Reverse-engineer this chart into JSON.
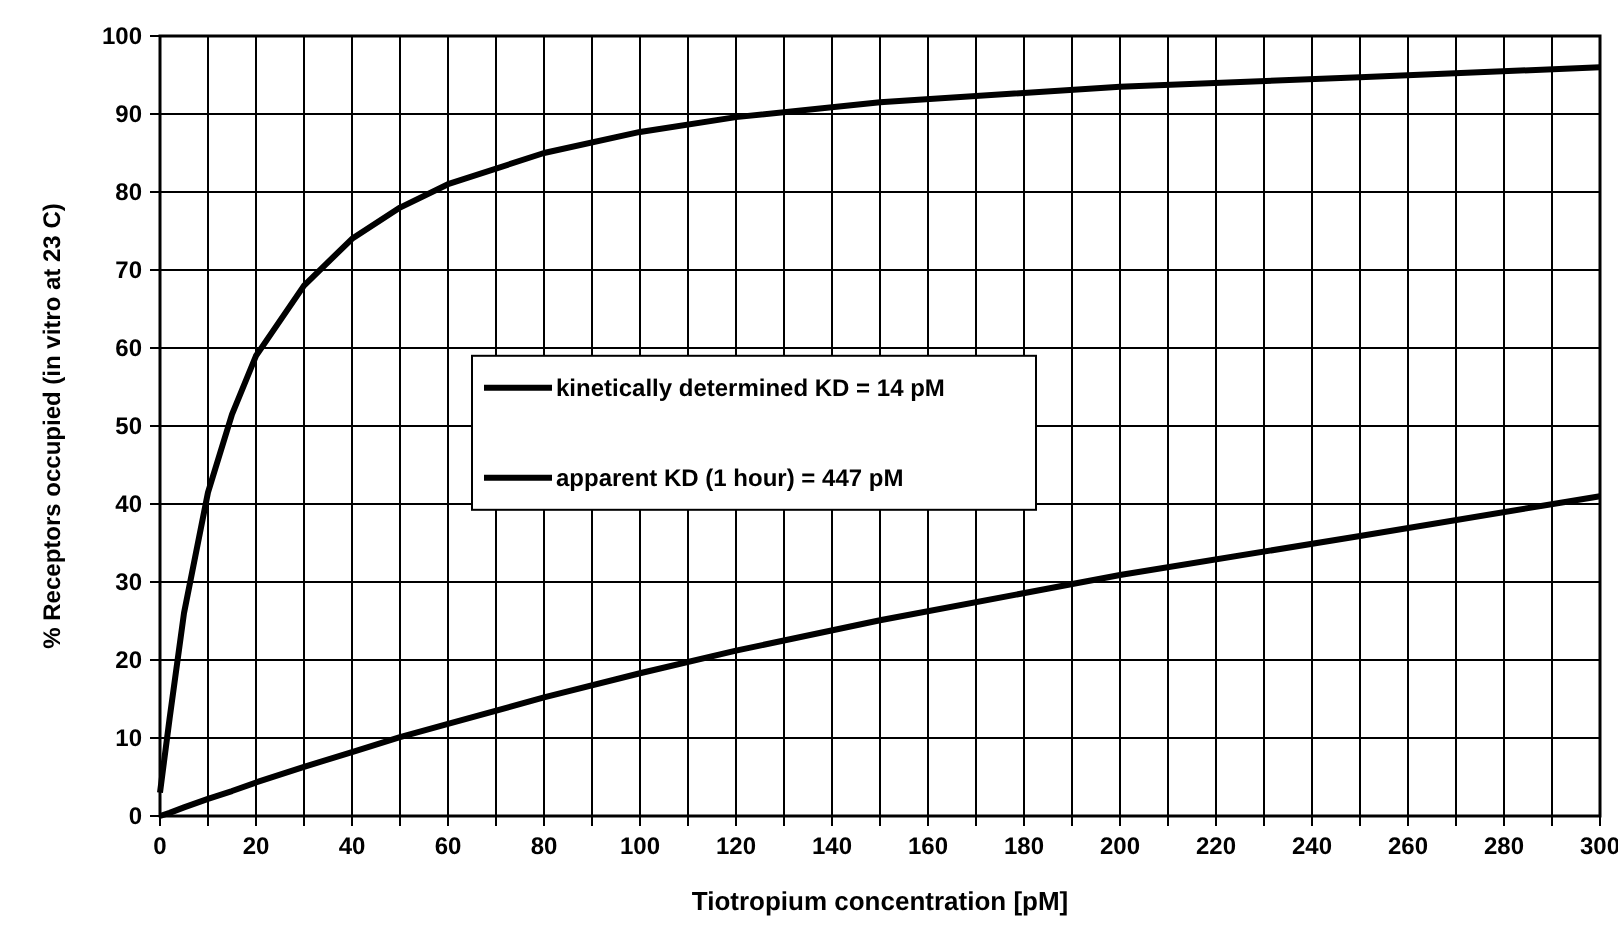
{
  "chart_data": {
    "type": "line",
    "xlabel": "Tiotropium concentration [pM]",
    "ylabel": "% Receptors occupied (in vitro at 23 C)",
    "x": [
      0,
      2,
      5,
      10,
      15,
      20,
      30,
      40,
      50,
      60,
      80,
      100,
      120,
      150,
      200,
      250,
      300
    ],
    "series": [
      {
        "name": "kinetically determined KD = 14 pM",
        "color": "#000000",
        "values": [
          3,
          12.5,
          26,
          41.5,
          51.5,
          59,
          68,
          74,
          78,
          81,
          85,
          87.7,
          89.6,
          91.5,
          93.5,
          94.7,
          96
        ]
      },
      {
        "name": "apparent KD (1 hour) = 447 pM",
        "color": "#000000",
        "values": [
          0,
          0.4,
          1.1,
          2.2,
          3.2,
          4.3,
          6.3,
          8.2,
          10.1,
          11.8,
          15.2,
          18.3,
          21.2,
          25.1,
          30.9,
          35.9,
          41
        ]
      }
    ],
    "xlim": [
      0,
      300
    ],
    "ylim": [
      0,
      100
    ],
    "xticks": [
      0,
      {
        "value": 10,
        "label": null
      },
      20,
      {
        "value": 30,
        "label": null
      },
      40,
      {
        "value": 50,
        "label": null
      },
      60,
      {
        "value": 70,
        "label": null
      },
      80,
      {
        "value": 90,
        "label": null
      },
      100,
      {
        "value": 110,
        "label": null
      },
      120,
      {
        "value": 130,
        "label": null
      },
      140,
      {
        "value": 150,
        "label": null
      },
      160,
      {
        "value": 170,
        "label": null
      },
      180,
      {
        "value": 190,
        "label": null
      },
      200,
      {
        "value": 210,
        "label": null
      },
      220,
      {
        "value": 230,
        "label": null
      },
      240,
      {
        "value": 250,
        "label": null
      },
      260,
      {
        "value": 270,
        "label": null
      },
      280,
      {
        "value": 290,
        "label": null
      },
      300
    ],
    "yticks": [
      0,
      10,
      20,
      30,
      40,
      50,
      60,
      70,
      80,
      90,
      100
    ],
    "grid": true,
    "legend": "center",
    "marker": "none",
    "line_style": "solid"
  }
}
